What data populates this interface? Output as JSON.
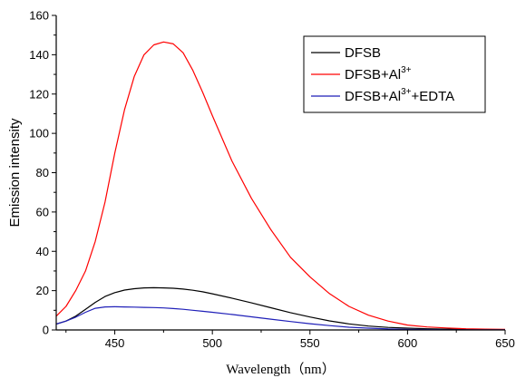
{
  "chart_data": {
    "type": "line",
    "title": "",
    "xlabel": "Wavelength（nm）",
    "ylabel": "Emission intensity",
    "xlim": [
      420,
      650
    ],
    "ylim": [
      0,
      160
    ],
    "xticks": [
      450,
      500,
      550,
      600,
      650
    ],
    "yticks": [
      0,
      20,
      40,
      60,
      80,
      100,
      120,
      140,
      160
    ],
    "grid": false,
    "legend_position": "top-right",
    "series": [
      {
        "name": "DFSB",
        "legend": {
          "base": "DFSB",
          "sup": "",
          "suffix": ""
        },
        "color": "#000000",
        "x": [
          420,
          425,
          430,
          435,
          440,
          445,
          450,
          455,
          460,
          465,
          470,
          475,
          480,
          485,
          490,
          495,
          500,
          510,
          520,
          530,
          540,
          550,
          560,
          570,
          580,
          590,
          600,
          610,
          620,
          630,
          640,
          650
        ],
        "y": [
          3,
          4.5,
          7,
          10.5,
          14,
          17,
          19,
          20.3,
          21,
          21.4,
          21.5,
          21.4,
          21.2,
          20.8,
          20.2,
          19.4,
          18.4,
          16.2,
          13.8,
          11.3,
          8.8,
          6.6,
          4.6,
          3.1,
          2.0,
          1.3,
          0.9,
          0.6,
          0.4,
          0.3,
          0.2,
          0.2
        ]
      },
      {
        "name": "DFSB+Al3+",
        "legend": {
          "base": "DFSB+Al",
          "sup": "3+",
          "suffix": ""
        },
        "color": "#ff0000",
        "x": [
          420,
          425,
          430,
          435,
          440,
          445,
          450,
          455,
          460,
          465,
          470,
          475,
          480,
          485,
          490,
          495,
          500,
          510,
          520,
          530,
          540,
          550,
          560,
          570,
          580,
          590,
          600,
          610,
          620,
          630,
          640,
          650
        ],
        "y": [
          7,
          12,
          20,
          30,
          45,
          65,
          90,
          112,
          129,
          140,
          145,
          146.5,
          145.5,
          141,
          132,
          121,
          109,
          86,
          67,
          51,
          37,
          27,
          18.5,
          12,
          7.5,
          4.5,
          2.5,
          1.5,
          1.0,
          0.6,
          0.4,
          0.3
        ]
      },
      {
        "name": "DFSB+Al3++EDTA",
        "legend": {
          "base": "DFSB+Al",
          "sup": "3+",
          "suffix": "+EDTA"
        },
        "color": "#1f1fb8",
        "x": [
          420,
          425,
          430,
          435,
          440,
          445,
          450,
          455,
          460,
          465,
          470,
          475,
          480,
          485,
          490,
          495,
          500,
          510,
          520,
          530,
          540,
          550,
          560,
          570,
          580,
          590,
          600,
          610,
          620,
          630,
          640,
          650
        ],
        "y": [
          3,
          4.5,
          6.5,
          9,
          11,
          11.7,
          11.8,
          11.7,
          11.6,
          11.5,
          11.4,
          11.2,
          10.9,
          10.5,
          10.0,
          9.5,
          9.0,
          7.9,
          6.7,
          5.5,
          4.3,
          3.2,
          2.2,
          1.4,
          0.9,
          0.5,
          0.3,
          0.2,
          0.1,
          0.1,
          0.1,
          0.1
        ]
      }
    ]
  }
}
